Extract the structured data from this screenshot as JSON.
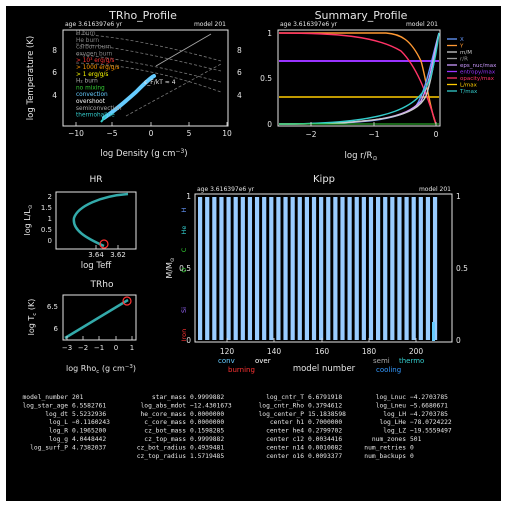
{
  "panels": {
    "trho_profile": {
      "title": "TRho_Profile",
      "age_label": "age 3.616397e6 yr",
      "model_label": "model 201",
      "xlabel": "log Density (g cm",
      "xlabel_sup": "−3",
      "xlabel_end": ")",
      "ylabel": "log Temperature (K)",
      "x_ticks": [
        "−10",
        "−5",
        "0",
        "5",
        "10"
      ],
      "y_ticks_left": [
        "8",
        "6",
        "4"
      ],
      "y_ticks_right": [
        "8",
        "6",
        "4"
      ],
      "legend": [
        {
          "text": "H burn",
          "color": "#888888"
        },
        {
          "text": "He burn",
          "color": "#888888"
        },
        {
          "text": "carbon burn",
          "color": "#888888"
        },
        {
          "text": "oxygen burn",
          "color": "#888888"
        },
        {
          "text": "> 10³ erg/g/s",
          "color": "#ff3333"
        },
        {
          "text": "> 1000 erg/g/s",
          "color": "#ff9900"
        },
        {
          "text": "> 1 erg/g/s",
          "color": "#ffff00"
        },
        {
          "text": "H₂ burn",
          "color": "#aaaaaa"
        },
        {
          "text": "no mixing",
          "color": "#33cc33"
        },
        {
          "text": "convection",
          "color": "#66ccff"
        },
        {
          "text": "overshoot",
          "color": "#ffffff"
        },
        {
          "text": "semiconvection",
          "color": "#aaaaaa"
        },
        {
          "text": "thermohaline",
          "color": "#33cccc"
        }
      ],
      "annotation": "ε_F/kT ≈ 4"
    },
    "summary_profile": {
      "title": "Summary_Profile",
      "age_label": "age 3.616397e6 yr",
      "model_label": "model 201",
      "xlabel": "log r/R",
      "xlabel_sub": "⊙",
      "x_ticks": [
        "−2",
        "−1",
        "0"
      ],
      "y_ticks": [
        "1",
        "0.5",
        "0"
      ],
      "y_ticks_right": [
        "1",
        "0.5",
        "0"
      ],
      "legend": [
        {
          "text": "X",
          "color": "#6699ff"
        },
        {
          "text": "Y",
          "color": "#ff9933"
        },
        {
          "text": "m/M",
          "color": "#cccccc"
        },
        {
          "text": "r/R",
          "color": "#999999"
        },
        {
          "text": "eps_nuc/max",
          "color": "#cc99ff"
        },
        {
          "text": "entropy/max",
          "color": "#9933ff"
        },
        {
          "text": "opacity/max",
          "color": "#ff3366"
        },
        {
          "text": "L/max",
          "color": "#ffcc00"
        },
        {
          "text": "T/max",
          "color": "#33cccc"
        }
      ]
    },
    "hr": {
      "title": "HR",
      "xlabel": "log Teff",
      "ylabel": "log L/L",
      "ylabel_sub": "⊙",
      "x_ticks": [
        "3.64",
        "3.62"
      ],
      "y_ticks": [
        "2",
        "1.5",
        "1",
        "0.5",
        "0"
      ]
    },
    "trho": {
      "title": "TRho",
      "xlabel": "log Rho",
      "xlabel_sub": "c",
      "xlabel_end": " (g cm",
      "xlabel_sup": "−3",
      "xlabel_close": ")",
      "ylabel": "log T",
      "ylabel_sub": "c",
      "ylabel_end": " (K)",
      "x_ticks": [
        "−3",
        "−2",
        "−1",
        "0",
        "1"
      ],
      "y_ticks": [
        "6.5",
        "6"
      ]
    },
    "kipp": {
      "title": "Kipp",
      "age_label": "age 3.616397e6 yr",
      "model_label": "model 201",
      "xlabel": "model number",
      "ylabel": "M/M",
      "ylabel_sub": "⊙",
      "x_ticks": [
        "120",
        "140",
        "160",
        "180",
        "200"
      ],
      "y_ticks_left": [
        "1",
        "0.5",
        "0"
      ],
      "y_ticks_right": [
        "1",
        "0.5",
        "0"
      ],
      "side_labels": [
        {
          "text": "H",
          "color": "#6699ff"
        },
        {
          "text": "He",
          "color": "#33cccc"
        },
        {
          "text": "C",
          "color": "#33cc33"
        },
        {
          "text": "O",
          "color": "#33cc33"
        },
        {
          "text": "Si",
          "color": "#9966ff"
        },
        {
          "text": "Iron",
          "color": "#ff3333"
        }
      ],
      "legend": [
        {
          "text": "conv",
          "color": "#66ccff"
        },
        {
          "text": "over",
          "color": "#ffffff"
        },
        {
          "text": "burning",
          "color": "#ff3333"
        },
        {
          "text": "semi",
          "color": "#aaaaaa"
        },
        {
          "text": "thermo",
          "color": "#33cccc"
        },
        {
          "text": "cooling",
          "color": "#3399ff"
        }
      ]
    }
  },
  "info_table": {
    "col1": [
      [
        "model_number",
        "201"
      ],
      [
        "log_star_age",
        "6.5582761"
      ],
      [
        "log_dt",
        "5.5232936"
      ],
      [
        "log_L",
        "−0.1160243"
      ],
      [
        "log_R",
        "0.1965200"
      ],
      [
        "log_g",
        "4.0448442"
      ],
      [
        "log_surf_P",
        "4.7382037"
      ]
    ],
    "col2": [
      [
        "star_mass",
        "0.9999882"
      ],
      [
        "log_abs_mdot",
        "−12.4301673"
      ],
      [
        "he_core_mass",
        "0.0000000"
      ],
      [
        "c_core_mass",
        "0.0000000"
      ],
      [
        "cz_bot_mass",
        "0.1598285"
      ],
      [
        "cz_top_mass",
        "0.9999882"
      ],
      [
        "cz_bot_radius",
        "0.4939481"
      ],
      [
        "cz_top_radius",
        "1.5719485"
      ]
    ],
    "col3": [
      [
        "log_cntr_T",
        "6.6791918"
      ],
      [
        "log_cntr_Rho",
        "0.3794612"
      ],
      [
        "log_center_P",
        "15.1838598"
      ],
      [
        "center h1",
        "0.7000000"
      ],
      [
        "center he4",
        "0.2799702"
      ],
      [
        "center c12",
        "0.0034416"
      ],
      [
        "center n14",
        "0.0010082"
      ],
      [
        "center o16",
        "0.0093377"
      ]
    ],
    "col4": [
      [
        "log_Lnuc",
        "−4.2703785"
      ],
      [
        "log_Lneu",
        "−5.6680671"
      ],
      [
        "log_LH",
        "−4.2703785"
      ],
      [
        "log_LHe",
        "−78.0724222"
      ],
      [
        "log_LZ",
        "−19.5559497"
      ],
      [
        "num_zones",
        "501"
      ],
      [
        "num_retries",
        "0"
      ],
      [
        "num_backups",
        "0"
      ]
    ]
  }
}
